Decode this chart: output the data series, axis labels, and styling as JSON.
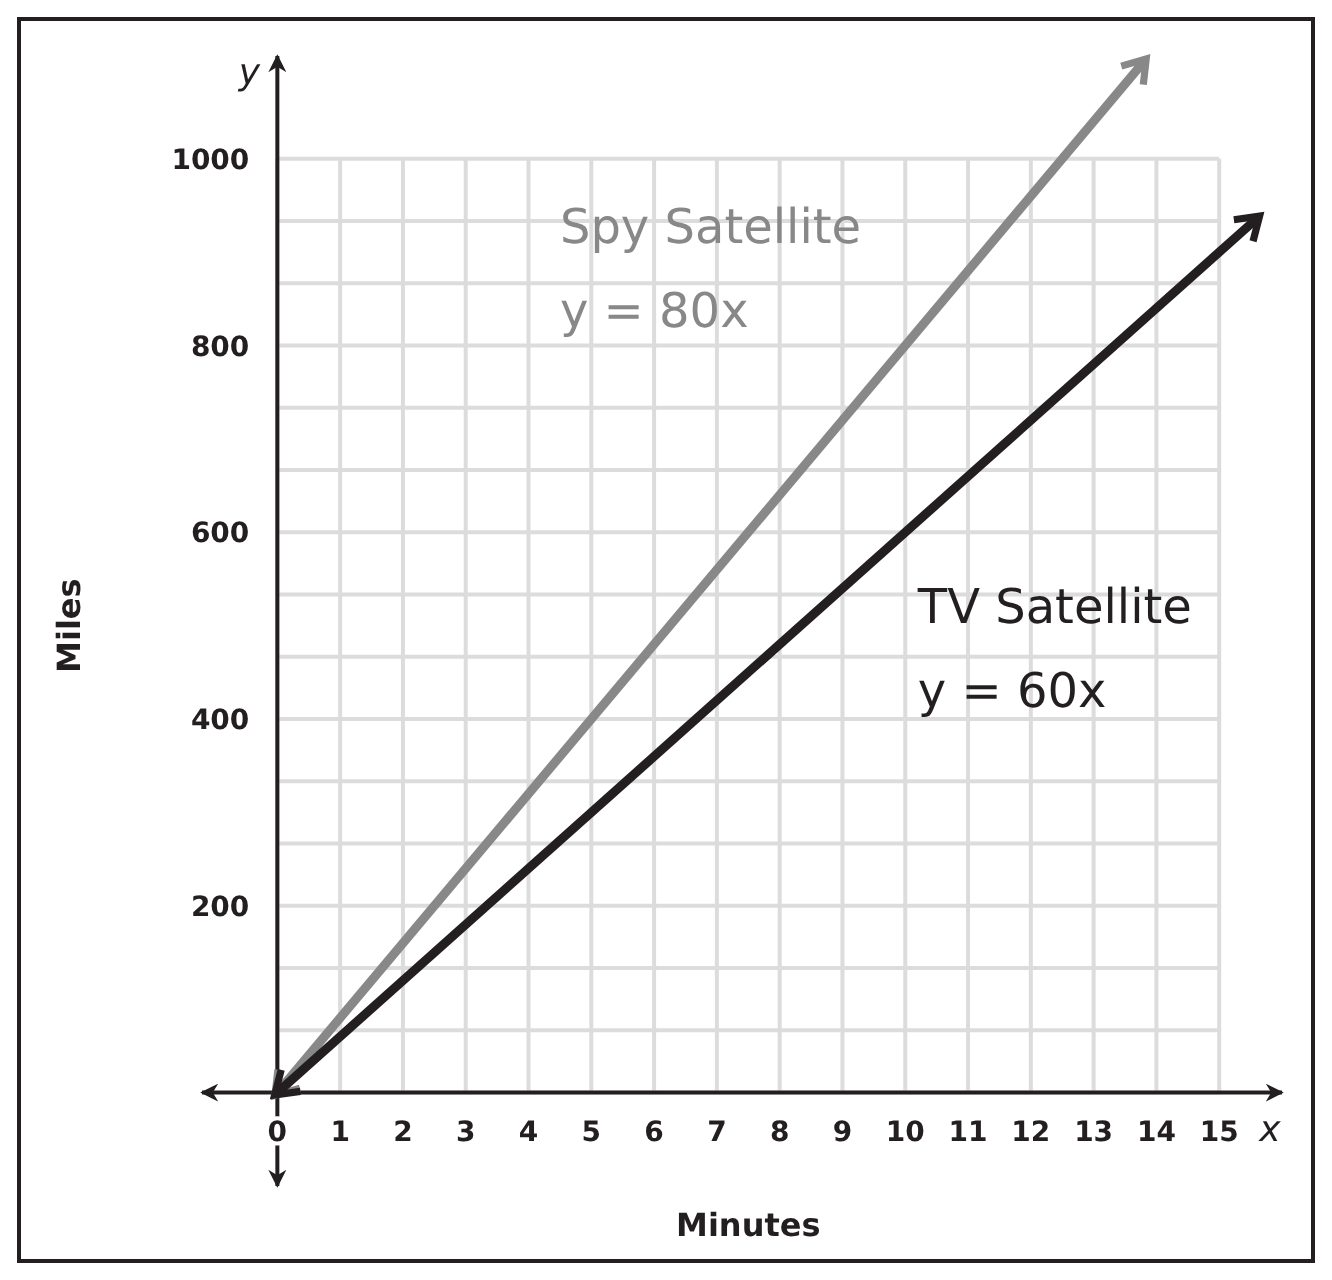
{
  "chart_data": {
    "type": "line",
    "xlabel": "Minutes",
    "ylabel": "Miles",
    "xlim": [
      -1.2,
      16
    ],
    "ylim": [
      -100,
      1110
    ],
    "xticks": [
      0,
      1,
      2,
      3,
      4,
      5,
      6,
      7,
      8,
      9,
      10,
      11,
      12,
      13,
      14,
      15
    ],
    "yticks": [
      {
        "value": 0,
        "label": null
      },
      200,
      400,
      600,
      800,
      1000
    ],
    "grid": true,
    "marker": "none",
    "line_style": "solid",
    "series": [
      {
        "name": "Spy Satellite",
        "color": "#888888",
        "x": [
          0,
          13.8
        ],
        "values": [
          0,
          1104
        ]
      },
      {
        "name": "TV Satellite",
        "color": "#231f20",
        "x": [
          0,
          15.6
        ],
        "values": [
          0,
          936
        ]
      }
    ],
    "annotations": [
      "y = 80x",
      "y = 60x",
      "x",
      "y"
    ]
  }
}
